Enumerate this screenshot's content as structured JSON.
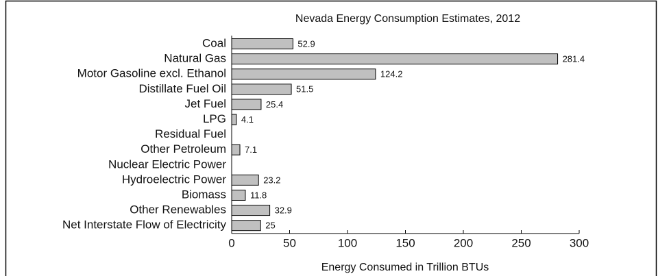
{
  "chart_data": {
    "type": "hbar",
    "title": "Nevada Energy Consumption Estimates, 2012",
    "x_label": "Energy Consumed in Trillion BTUs",
    "categories": [
      "Coal",
      "Natural Gas",
      "Motor Gasoline excl. Ethanol",
      "Distillate Fuel Oil",
      "Jet Fuel",
      "LPG",
      "Residual Fuel",
      "Other Petroleum",
      "Nuclear Electric Power",
      "Hydroelectric Power",
      "Biomass",
      "Other Renewables",
      "Net Interstate Flow of Electricity"
    ],
    "values": [
      52.9,
      281.4,
      124.2,
      51.5,
      25.4,
      4.1,
      0,
      7.1,
      0,
      23.2,
      11.8,
      32.9,
      25
    ],
    "color": "#c0c0c0",
    "xlim": [
      0,
      300
    ],
    "xticks": [
      0,
      50,
      100,
      150,
      200,
      250,
      300
    ]
  }
}
